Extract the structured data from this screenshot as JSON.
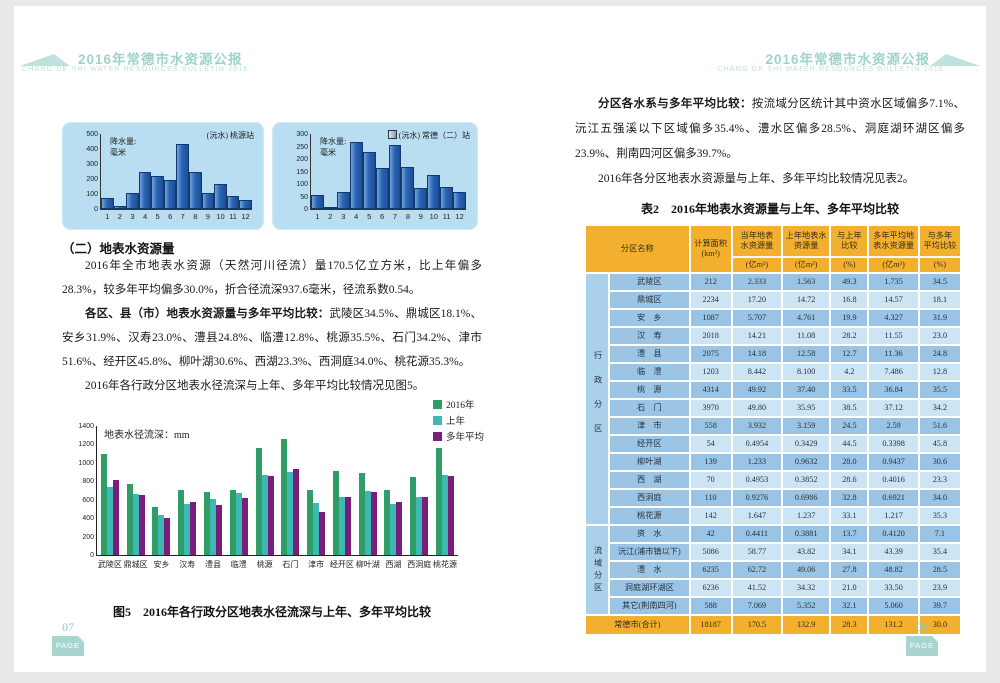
{
  "page_left": {
    "header": {
      "title": "2016年常德市水资源公报",
      "subtitle": "CHANG DE SHI WATER RESOURCES BULLETIN 2016"
    },
    "section_heading": "（二）地表水资源量",
    "para1": "2016年全市地表水资源（天然河川径流）量170.5亿立方米，比上年偏多28.3%，较多年平均偏多30.0%，折合径流深937.6毫米，径流系数0.54。",
    "para2_lead": "各区、县（市）地表水资源量与多年平均比较：",
    "para2_rest": "武陵区34.5%、鼎城区18.1%、安乡31.9%、汉寿23.0%、澧县24.8%、临澧12.8%、桃源35.5%、石门34.2%、津市51.6%、经开区45.8%、柳叶湖30.6%、西湖23.3%、西洞庭34.0%、桃花源35.3%。",
    "para3": "2016年各行政分区地表水径流深与上年、多年平均比较情况见图5。",
    "figure_caption": "图5　2016年各行政分区地表水径流深与上年、多年平均比较",
    "page_number": "07",
    "page_label": "PAGE"
  },
  "page_right": {
    "header": {
      "title": "2016年常德市水资源公报",
      "subtitle": "CHANG DE SHI WATER RESOURCES BULLETIN 2016"
    },
    "para1_lead": "分区各水系与多年平均比较：",
    "para1_rest": "按流域分区统计其中资水区域偏多7.1%、沅江五强溪以下区域偏多35.4%、澧水区偏多28.5%、洞庭湖环湖区偏多23.9%、荆南四河区偏多39.7%。",
    "para2": "2016年各分区地表水资源量与上年、多年平均比较情况见表2。",
    "table_title": "表2　2016年地表水资源量与上年、多年平均比较",
    "page_number": "08",
    "page_label": "PAGE"
  },
  "chart_data": [
    {
      "type": "bar",
      "station_label": "(沅水) 桃源站",
      "ylabel_line1": "降水量:",
      "ylabel_line2": "毫米",
      "categories": [
        "1",
        "2",
        "3",
        "4",
        "5",
        "6",
        "7",
        "8",
        "9",
        "10",
        "11",
        "12"
      ],
      "values": [
        75,
        20,
        110,
        245,
        220,
        195,
        435,
        250,
        105,
        165,
        85,
        60
      ],
      "ylim": [
        0,
        500
      ],
      "ytick_step": 100
    },
    {
      "type": "bar",
      "station_label": "(沅水) 常德（二）站",
      "ylabel_line1": "降水量:",
      "ylabel_line2": "毫米",
      "categories": [
        "1",
        "2",
        "3",
        "4",
        "5",
        "6",
        "7",
        "8",
        "9",
        "10",
        "11",
        "12"
      ],
      "values": [
        55,
        10,
        70,
        270,
        230,
        165,
        255,
        170,
        85,
        135,
        90,
        70
      ],
      "ylim": [
        0,
        300
      ],
      "ytick_step": 50
    },
    {
      "type": "bar",
      "title": "地表水径流深：mm",
      "categories": [
        "武陵区",
        "鼎城区",
        "安乡",
        "汉寿",
        "澧县",
        "临澧",
        "桃源",
        "石门",
        "津市",
        "经开区",
        "柳叶湖",
        "西湖",
        "西洞庭",
        "桃花源"
      ],
      "series": [
        {
          "name": "2016年",
          "color": "#2f9d66",
          "values": [
            1100,
            770,
            525,
            704,
            683,
            702,
            1157,
            1254,
            705,
            917,
            887,
            708,
            843,
            1160
          ]
        },
        {
          "name": "上年",
          "color": "#3eb8b2",
          "values": [
            737,
            659,
            438,
            549,
            606,
            673,
            867,
            906,
            566,
            635,
            693,
            550,
            635,
            871
          ]
        },
        {
          "name": "多年平均",
          "color": "#7a1e7c",
          "values": [
            818,
            652,
            398,
            572,
            547,
            622,
            854,
            935,
            464,
            629,
            679,
            574,
            629,
            857
          ]
        }
      ],
      "ylim": [
        0,
        1400
      ],
      "ytick_step": 200,
      "legend_position": "top-right"
    }
  ],
  "table": {
    "header": {
      "name": "分区名称",
      "cols": [
        {
          "line1": "计算面积",
          "line2": "",
          "unit": "(km²)"
        },
        {
          "line1": "当年地表",
          "line2": "水资源量",
          "unit": "(亿m³)"
        },
        {
          "line1": "上年地表水",
          "line2": "资源量",
          "unit": "(亿m³)"
        },
        {
          "line1": "与上年",
          "line2": "比较",
          "unit": "(%)"
        },
        {
          "line1": "多年平均地",
          "line2": "表水资源量",
          "unit": "(亿m³)"
        },
        {
          "line1": "与多年",
          "line2": "平均比较",
          "unit": "(%)"
        }
      ]
    },
    "groups": [
      {
        "label": "行政分区",
        "rows": [
          [
            "武陵区",
            "212",
            "2.333",
            "1.563",
            "49.3",
            "1.735",
            "34.5"
          ],
          [
            "鼎城区",
            "2234",
            "17.20",
            "14.72",
            "16.8",
            "14.57",
            "18.1"
          ],
          [
            "安　乡",
            "1087",
            "5.707",
            "4.761",
            "19.9",
            "4.327",
            "31.9"
          ],
          [
            "汉　寿",
            "2018",
            "14.21",
            "11.08",
            "28.2",
            "11.55",
            "23.0"
          ],
          [
            "澧　县",
            "2075",
            "14.18",
            "12.58",
            "12.7",
            "11.36",
            "24.8"
          ],
          [
            "临　澧",
            "1203",
            "8.442",
            "8.100",
            "4.2",
            "7.486",
            "12.8"
          ],
          [
            "桃　源",
            "4314",
            "49.92",
            "37.40",
            "33.5",
            "36.84",
            "35.5"
          ],
          [
            "石　门",
            "3970",
            "49.80",
            "35.95",
            "38.5",
            "37.12",
            "34.2"
          ],
          [
            "津　市",
            "558",
            "3.932",
            "3.159",
            "24.5",
            "2.59",
            "51.6"
          ],
          [
            "经开区",
            "54",
            "0.4954",
            "0.3429",
            "44.5",
            "0.3398",
            "45.8"
          ],
          [
            "柳叶湖",
            "139",
            "1.233",
            "0.9632",
            "28.0",
            "0.9437",
            "30.6"
          ],
          [
            "西　湖",
            "70",
            "0.4953",
            "0.3852",
            "28.6",
            "0.4016",
            "23.3"
          ],
          [
            "西洞庭",
            "110",
            "0.9276",
            "0.6986",
            "32.8",
            "0.6921",
            "34.0"
          ],
          [
            "桃花源",
            "142",
            "1.647",
            "1.237",
            "33.1",
            "1.217",
            "35.3"
          ]
        ]
      },
      {
        "label": "流域分区",
        "rows": [
          [
            "资　水",
            "42",
            "0.4411",
            "0.3881",
            "13.7",
            "0.4120",
            "7.1"
          ],
          [
            "沅江(浦市镇以下)",
            "5086",
            "58.77",
            "43.82",
            "34.1",
            "43.39",
            "35.4"
          ],
          [
            "澧　水",
            "6235",
            "62.72",
            "49.06",
            "27.8",
            "48.82",
            "28.5"
          ],
          [
            "洞庭湖环湖区",
            "6236",
            "41.52",
            "34.32",
            "21.0",
            "33.50",
            "23.9"
          ],
          [
            "其它(荆南四河)",
            "588",
            "7.069",
            "5.352",
            "32.1",
            "5.060",
            "39.7"
          ]
        ]
      }
    ],
    "footer": [
      "常德市(合计)",
      "18187",
      "170.5",
      "132.9",
      "28.3",
      "131.2",
      "30.0"
    ],
    "colors": {
      "header_bg": "#f2b02e",
      "row_dark": "#99c4e5",
      "row_light": "#cde4f5",
      "group_bg": "#abd0ec",
      "footer_bg": "#f2b02e"
    }
  }
}
